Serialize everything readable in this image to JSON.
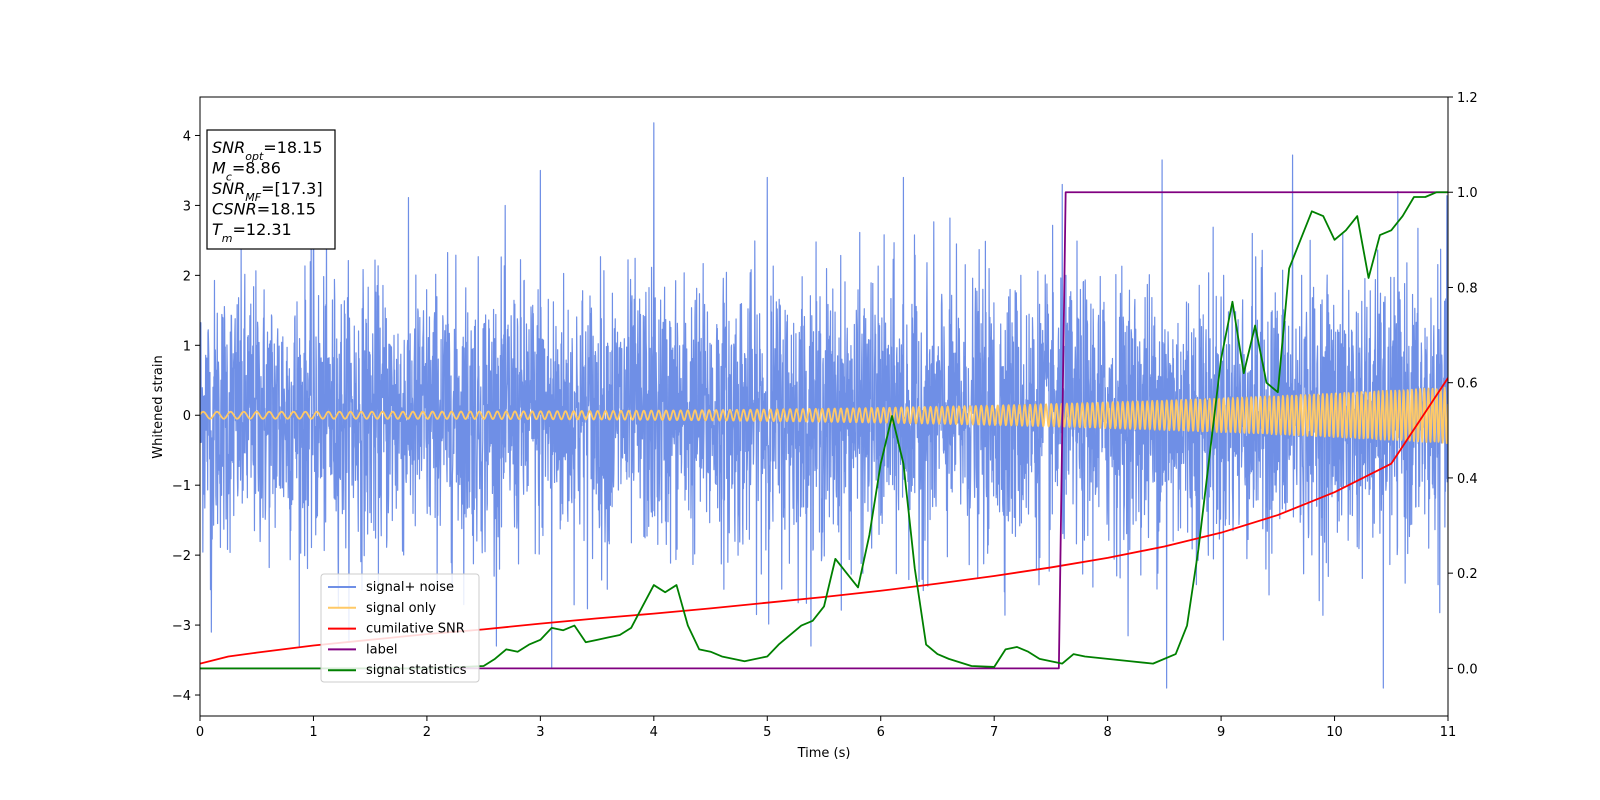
{
  "chart_data": {
    "type": "line",
    "xlabel": "Time (s)",
    "ylabel": "Whitened strain",
    "xlim": [
      0,
      11
    ],
    "ylim": [
      -4.3,
      4.55
    ],
    "y2lim": [
      -0.1,
      1.2
    ],
    "x_ticks": [
      "0",
      "1",
      "2",
      "3",
      "4",
      "5",
      "6",
      "7",
      "8",
      "9",
      "10",
      "11"
    ],
    "y_ticks": [
      "−4",
      "−3",
      "−2",
      "−1",
      "0",
      "1",
      "2",
      "3",
      "4"
    ],
    "y2_ticks": [
      "0.0",
      "0.2",
      "0.4",
      "0.6",
      "0.8",
      "1.0",
      "1.2"
    ],
    "grid": false,
    "legend_position": "lower-left",
    "info_box": {
      "lines": [
        {
          "var": "SNR",
          "sub": "opt",
          "value": "=18.15"
        },
        {
          "var": "M",
          "sub": "c",
          "value": "=8.86"
        },
        {
          "var": "SNR",
          "sub": "MF",
          "value": "=[17.3]"
        },
        {
          "var": "CSNR",
          "sub": "",
          "value": "=18.15"
        },
        {
          "var": "T",
          "sub": "m",
          "value": "=12.31"
        }
      ]
    },
    "series": [
      {
        "name": "signal+ noise",
        "axis": "left",
        "color": "#6f8fe6",
        "description_kind": "noise",
        "noise_std": 0.95,
        "noise_extremes": [
          [
            4.0,
            4.18
          ],
          [
            9.63,
            3.72
          ],
          [
            8.52,
            -3.9
          ],
          [
            10.43,
            -3.9
          ],
          [
            3.0,
            3.5
          ],
          [
            1.0,
            3.5
          ],
          [
            0.1,
            -3.1
          ],
          [
            3.1,
            -3.6
          ],
          [
            5.0,
            3.4
          ],
          [
            6.2,
            3.4
          ],
          [
            7.6,
            3.3
          ],
          [
            8.48,
            3.65
          ]
        ]
      },
      {
        "name": "signal only",
        "axis": "left",
        "color": "#ffc966",
        "description_kind": "chirp",
        "amplitude_start": 0.05,
        "amplitude_end": 0.4,
        "frequency_start": 8,
        "frequency_end": 28
      },
      {
        "name": "cumilative SNR",
        "axis": "right",
        "color": "#ff0000",
        "x": [
          0,
          0.25,
          0.5,
          1,
          1.5,
          2,
          2.5,
          3,
          3.5,
          4,
          4.5,
          5,
          5.5,
          6,
          6.5,
          7,
          7.5,
          8,
          8.5,
          9,
          9.5,
          10,
          10.5,
          11
        ],
        "y": [
          0.01,
          0.025,
          0.033,
          0.048,
          0.06,
          0.072,
          0.082,
          0.094,
          0.105,
          0.115,
          0.126,
          0.138,
          0.15,
          0.163,
          0.178,
          0.194,
          0.212,
          0.232,
          0.256,
          0.285,
          0.322,
          0.37,
          0.43,
          0.61
        ]
      },
      {
        "name": "label",
        "axis": "right",
        "color": "#800080",
        "x": [
          0,
          7.57,
          7.63,
          11
        ],
        "y": [
          0,
          0,
          1.0,
          1.0
        ]
      },
      {
        "name": "signal statistics",
        "axis": "right",
        "color": "#008000",
        "x": [
          0,
          0.5,
          1,
          1.5,
          2,
          2.5,
          2.6,
          2.7,
          2.8,
          2.9,
          3.0,
          3.1,
          3.2,
          3.3,
          3.4,
          3.5,
          3.6,
          3.7,
          3.8,
          3.9,
          4.0,
          4.1,
          4.2,
          4.3,
          4.4,
          4.5,
          4.6,
          4.8,
          5.0,
          5.1,
          5.2,
          5.3,
          5.4,
          5.5,
          5.6,
          5.7,
          5.8,
          5.9,
          6.0,
          6.1,
          6.2,
          6.3,
          6.4,
          6.5,
          6.6,
          6.8,
          7.0,
          7.1,
          7.2,
          7.3,
          7.4,
          7.5,
          7.6,
          7.7,
          7.8,
          8.0,
          8.2,
          8.4,
          8.6,
          8.7,
          8.8,
          8.9,
          9.0,
          9.1,
          9.2,
          9.3,
          9.4,
          9.5,
          9.6,
          9.7,
          9.8,
          9.9,
          10.0,
          10.1,
          10.2,
          10.3,
          10.4,
          10.5,
          10.6,
          10.7,
          10.8,
          10.9,
          11.0
        ],
        "y": [
          0.0,
          0.0,
          0.0,
          0.0,
          0.0,
          0.005,
          0.02,
          0.04,
          0.035,
          0.05,
          0.06,
          0.085,
          0.08,
          0.09,
          0.055,
          0.06,
          0.065,
          0.07,
          0.085,
          0.13,
          0.175,
          0.16,
          0.175,
          0.09,
          0.04,
          0.035,
          0.025,
          0.015,
          0.025,
          0.05,
          0.07,
          0.09,
          0.1,
          0.13,
          0.23,
          0.2,
          0.17,
          0.28,
          0.43,
          0.53,
          0.43,
          0.21,
          0.05,
          0.03,
          0.02,
          0.005,
          0.003,
          0.04,
          0.045,
          0.035,
          0.02,
          0.015,
          0.01,
          0.03,
          0.025,
          0.02,
          0.015,
          0.01,
          0.03,
          0.09,
          0.25,
          0.45,
          0.65,
          0.77,
          0.62,
          0.72,
          0.6,
          0.58,
          0.84,
          0.9,
          0.96,
          0.95,
          0.9,
          0.92,
          0.95,
          0.82,
          0.91,
          0.92,
          0.95,
          0.99,
          0.99,
          1.0,
          1.0
        ]
      }
    ]
  }
}
